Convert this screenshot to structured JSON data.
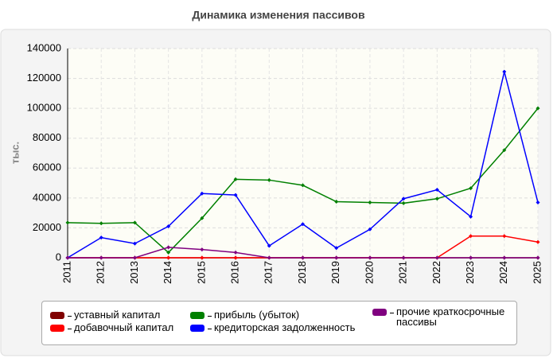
{
  "chart_data": {
    "type": "line",
    "title": "Динамика изменения пассивов",
    "y_label": "тыс.",
    "categories": [
      "2011",
      "2012",
      "2013",
      "2014",
      "2015",
      "2016",
      "2017",
      "2018",
      "2019",
      "2020",
      "2021",
      "2022",
      "2023",
      "2024",
      "2025"
    ],
    "series": [
      {
        "name": "уставный капитал",
        "color": "#800000",
        "values": [
          0,
          0,
          0,
          0,
          0,
          0,
          0,
          0,
          0,
          0,
          0,
          0,
          0,
          0,
          0
        ]
      },
      {
        "name": "добавочный капитал",
        "color": "#ff0000",
        "values": [
          0,
          0,
          0,
          0,
          0,
          0,
          0,
          0,
          0,
          0,
          0,
          0,
          14500,
          14500,
          10500
        ]
      },
      {
        "name": "прибыль (убыток)",
        "color": "#008000",
        "values": [
          23500,
          23000,
          23500,
          3500,
          26500,
          52500,
          52000,
          48500,
          37500,
          37000,
          36500,
          39500,
          46500,
          72000,
          100000
        ]
      },
      {
        "name": "кредиторская задолженность",
        "color": "#0000ff",
        "values": [
          0,
          13500,
          9500,
          21000,
          43000,
          42000,
          8000,
          22500,
          6500,
          19000,
          39500,
          45500,
          27500,
          124500,
          37000
        ]
      },
      {
        "name": "прочие краткосрочные пассивы",
        "color": "#800080",
        "values": [
          0,
          0,
          0,
          7000,
          5500,
          3500,
          0,
          0,
          0,
          0,
          0,
          0,
          0,
          0,
          0
        ]
      }
    ],
    "ylim": [
      0,
      140000
    ],
    "yticks": [
      0,
      20000,
      40000,
      60000,
      80000,
      100000,
      120000,
      140000
    ],
    "grid": true
  }
}
